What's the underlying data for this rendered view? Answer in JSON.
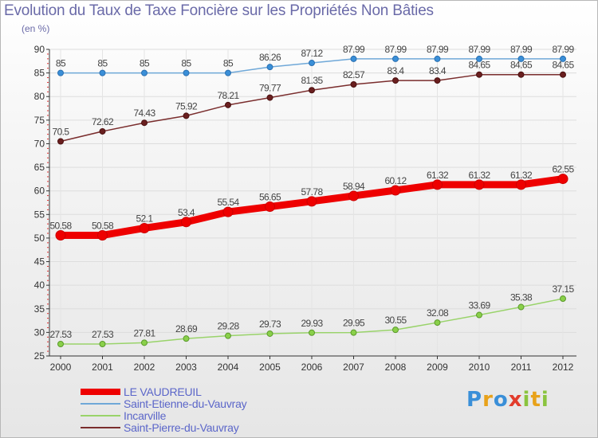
{
  "title": "Evolution du Taux de Taxe Foncière sur les Propriétés Non Bâties",
  "unit": "(en %)",
  "brand": {
    "text": "Proxiti",
    "letters": [
      "P",
      "r",
      "o",
      "x",
      "i",
      "t",
      "i"
    ],
    "colors": [
      "#3a8fd8",
      "#e8a21a",
      "#3a8fd8",
      "#e23c2c",
      "#8ac43f",
      "#e8a21a",
      "#8ac43f"
    ]
  },
  "chart_data": {
    "type": "line",
    "title": "Evolution du Taux de Taxe Foncière sur les Propriétés Non Bâties",
    "ylabel": "(en %)",
    "xlabel": "",
    "categories": [
      "2000",
      "2001",
      "2002",
      "2003",
      "2004",
      "2005",
      "2006",
      "2007",
      "2008",
      "2009",
      "2010",
      "2011",
      "2012"
    ],
    "ylim": [
      25,
      90
    ],
    "yticks": [
      25,
      30,
      35,
      40,
      45,
      50,
      55,
      60,
      65,
      70,
      75,
      80,
      85,
      90
    ],
    "series": [
      {
        "name": "LE VAUDREUIL",
        "color": "#ee0000",
        "values": [
          50.58,
          50.58,
          52.1,
          53.4,
          55.54,
          56.65,
          57.78,
          58.94,
          60.12,
          61.32,
          61.32,
          61.32,
          62.55
        ],
        "labels": [
          "50.58",
          "50.58",
          "52.1",
          "53.4",
          "55.54",
          "56.65",
          "57.78",
          "58.94",
          "60.12",
          "61.32",
          "61.32",
          "61.32",
          "62.55"
        ]
      },
      {
        "name": "Saint-Etienne-du-Vauvray",
        "color": "#6fa8d8",
        "values": [
          85,
          85,
          85,
          85,
          85,
          86.26,
          87.12,
          87.99,
          87.99,
          87.99,
          87.99,
          87.99,
          87.99
        ],
        "labels": [
          "85",
          "85",
          "85",
          "85",
          "85",
          "86.26",
          "87.12",
          "87.99",
          "87.99",
          "87.99",
          "87.99",
          "87.99",
          "87.99"
        ]
      },
      {
        "name": "Incarville",
        "color": "#99d36a",
        "values": [
          27.53,
          27.53,
          27.81,
          28.69,
          29.28,
          29.73,
          29.93,
          29.95,
          30.55,
          32.08,
          33.69,
          35.38,
          37.15
        ],
        "labels": [
          "27.53",
          "27.53",
          "27.81",
          "28.69",
          "29.28",
          "29.73",
          "29.93",
          "29.95",
          "30.55",
          "32.08",
          "33.69",
          "35.38",
          "37.15"
        ]
      },
      {
        "name": "Saint-Pierre-du-Vauvray",
        "color": "#7a2d2d",
        "values": [
          70.5,
          72.62,
          74.43,
          75.92,
          78.21,
          79.77,
          81.35,
          82.57,
          83.4,
          83.4,
          84.65,
          84.65,
          84.65
        ],
        "labels": [
          "70.5",
          "72.62",
          "74.43",
          "75.92",
          "78.21",
          "79.77",
          "81.35",
          "82.57",
          "83.4",
          "83.4",
          "84.65",
          "84.65",
          "84.65"
        ]
      }
    ]
  }
}
